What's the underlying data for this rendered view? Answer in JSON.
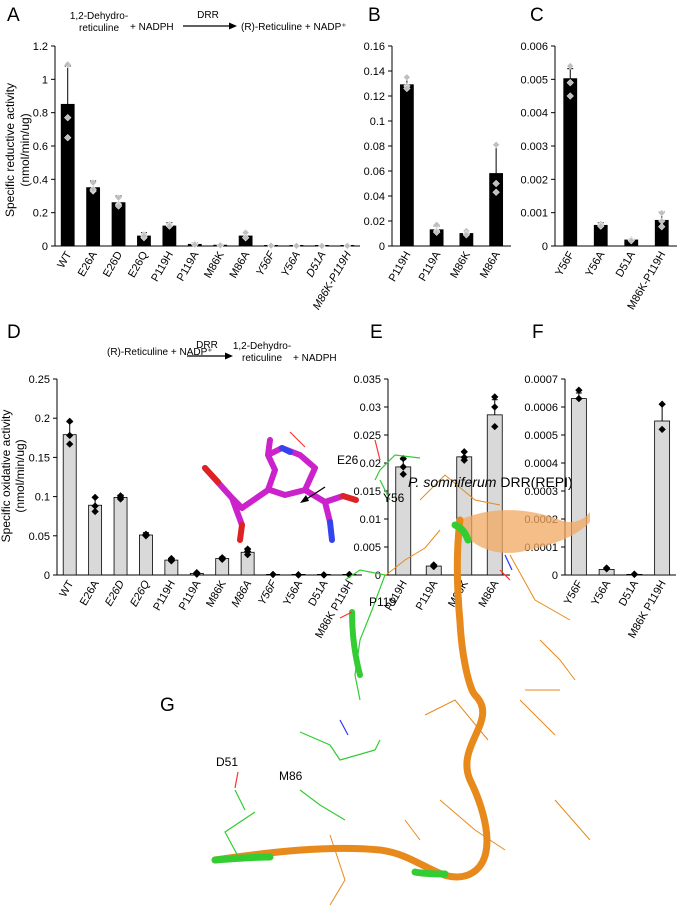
{
  "panels": {
    "A": "A",
    "B": "B",
    "C": "C",
    "D": "D",
    "E": "E",
    "F": "F",
    "G": "G"
  },
  "reactions": {
    "reduction": {
      "substrate": "1,2-Dehydro-",
      "substrate_line2": "reticuline",
      "cofactor": "+ NADPH",
      "enzyme": "DRR",
      "product": "(R)-Reticuline + NADP⁺"
    },
    "oxidation": {
      "substrate": "(R)-Reticuline + NADP⁺",
      "enzyme": "DRR",
      "product": "1,2-Dehydro-",
      "product_line2": "reticuline",
      "cofactor": "+ NADPH"
    }
  },
  "ylabels": {
    "reductive": [
      "Specific reductive  activity",
      "(nmol/min/ug)"
    ],
    "oxidative": [
      "Specific oxidative activity",
      "(nmol/min/ug)"
    ]
  },
  "colors": {
    "reductive_bar": "#000000",
    "oxidative_bar": "#d9d9d9",
    "reductive_point": "#bfbfbf",
    "oxidative_point": "#000000",
    "pink": "#cc22cc",
    "orange": "#e8891c",
    "green": "#33cc33"
  },
  "structure": {
    "title": "P. somniferum DRR(REPI)",
    "residues": [
      "E26",
      "Y56",
      "P119",
      "D51",
      "M86"
    ]
  },
  "chart_data": [
    {
      "panel": "A",
      "type": "bar",
      "categories": [
        "WT",
        "E26A",
        "E26D",
        "E26Q",
        "P119H",
        "P119A",
        "M86K",
        "M86A",
        "Y56F",
        "Y56A",
        "D51A",
        "M86K-P119H"
      ],
      "values": [
        0.85,
        0.35,
        0.26,
        0.06,
        0.12,
        0.01,
        0.005,
        0.06,
        0.003,
        0.002,
        0.0005,
        0.002
      ],
      "errors": [
        0.23,
        0.04,
        0.04,
        0.02,
        0.02,
        0.01,
        0.003,
        0.02,
        0.0005,
        0.0004,
        0.0001,
        0.0004
      ],
      "points": [
        [
          1.09,
          0.77,
          0.65
        ],
        [
          0.38,
          0.33,
          0.34
        ],
        [
          0.29,
          0.25,
          0.24
        ],
        [
          0.07,
          0.05,
          0.06
        ],
        [
          0.13,
          0.12,
          0.12
        ],
        [
          0.015,
          0.01,
          0.008
        ],
        [
          0.006,
          0.005,
          0.004
        ],
        [
          0.08,
          0.05,
          0.05
        ],
        [
          0.003,
          0.003,
          0.002
        ],
        [
          0.002,
          0.002,
          0.001
        ],
        [
          0.0005,
          0.0005,
          0.0005
        ],
        [
          0.002,
          0.002,
          0.001
        ]
      ],
      "ylim": [
        0,
        1.2
      ],
      "yticks": [
        0,
        0.2,
        0.4,
        0.6,
        0.8,
        1,
        1.2
      ],
      "ytick_labels": [
        "0",
        "0.2",
        "0.4",
        "0.6",
        "0.8",
        "1",
        "1.2"
      ],
      "italic_labels": [
        "Y56F",
        "Y56A",
        "D51A",
        "M86K-P119H"
      ]
    },
    {
      "panel": "B",
      "type": "bar",
      "categories": [
        "P119H",
        "P119A",
        "M86K",
        "M86A"
      ],
      "values": [
        0.129,
        0.013,
        0.01,
        0.058
      ],
      "errors": [
        0.006,
        0.003,
        0.002,
        0.023
      ],
      "points": [
        [
          0.135,
          0.128,
          0.126
        ],
        [
          0.017,
          0.012,
          0.011
        ],
        [
          0.012,
          0.01,
          0.009
        ],
        [
          0.081,
          0.05,
          0.043
        ]
      ],
      "ylim": [
        0,
        0.16
      ],
      "yticks": [
        0,
        0.02,
        0.04,
        0.06,
        0.08,
        0.1,
        0.12,
        0.14,
        0.16
      ],
      "ytick_labels": [
        "0",
        "0.02",
        "0.04",
        "0.06",
        "0.08",
        "0.1",
        "0.12",
        "0.14",
        "0.16"
      ]
    },
    {
      "panel": "C",
      "type": "bar",
      "categories": [
        "Y56F",
        "Y56A",
        "D51A",
        "M86K-P119H"
      ],
      "values": [
        0.00502,
        0.00062,
        0.00018,
        0.00077
      ],
      "errors": [
        0.0003,
        8e-05,
        3e-05,
        0.00025
      ],
      "points": [
        [
          0.0054,
          0.0049,
          0.0045
        ],
        [
          0.00066,
          0.0006,
          0.0006
        ],
        [
          0.0002,
          0.00018,
          0.00016
        ],
        [
          0.00099,
          0.00075,
          0.00058
        ]
      ],
      "ylim": [
        0,
        0.006
      ],
      "yticks": [
        0,
        0.001,
        0.002,
        0.003,
        0.004,
        0.005,
        0.006
      ],
      "ytick_labels": [
        "0",
        "0.001",
        "0.002",
        "0.003",
        "0.004",
        "0.005",
        "0.006"
      ]
    },
    {
      "panel": "D",
      "type": "bar",
      "categories": [
        "WT",
        "E26A",
        "E26D",
        "E26Q",
        "P119H",
        "P119A",
        "M86K",
        "M86A",
        "Y56F",
        "Y56A",
        "D51A",
        "M86K P119H"
      ],
      "values": [
        0.179,
        0.089,
        0.099,
        0.051,
        0.019,
        0.002,
        0.021,
        0.029,
        0.0006,
        0.0002,
        0.0001,
        0.0006
      ],
      "errors": [
        0.016,
        0.01,
        0.003,
        0.003,
        0.002,
        0.001,
        0.002,
        0.005,
        0.0001,
        5e-05,
        2e-05,
        0.0001
      ],
      "points": [
        [
          0.196,
          0.178,
          0.167
        ],
        [
          0.099,
          0.088,
          0.081
        ],
        [
          0.101,
          0.099,
          0.097
        ],
        [
          0.052,
          0.051,
          0.05
        ],
        [
          0.021,
          0.02,
          0.018
        ],
        [
          0.003,
          0.002,
          0.001
        ],
        [
          0.022,
          0.021,
          0.02
        ],
        [
          0.033,
          0.03,
          0.026
        ],
        [
          0.0007,
          0.0006,
          0.0006
        ],
        [
          0.0003,
          0.0002,
          0.0002
        ],
        [
          0.0001,
          0.0001,
          0.0001
        ],
        [
          0.0006,
          0.0006,
          0.0005
        ]
      ],
      "ylim": [
        0,
        0.25
      ],
      "yticks": [
        0,
        0.05,
        0.1,
        0.15,
        0.2,
        0.25
      ],
      "ytick_labels": [
        "0",
        "0.05",
        "0.1",
        "0.15",
        "0.2",
        "0.25"
      ],
      "italic_labels": [
        "E26D",
        "E26Q",
        "M86A",
        "Y56F"
      ]
    },
    {
      "panel": "E",
      "type": "bar",
      "categories": [
        "P119H",
        "P119A",
        "M86K",
        "M86A"
      ],
      "values": [
        0.0193,
        0.0016,
        0.0211,
        0.0286
      ],
      "errors": [
        0.0013,
        0.0002,
        0.0009,
        0.0027
      ],
      "points": [
        [
          0.0208,
          0.0193,
          0.018
        ],
        [
          0.0018,
          0.0016,
          0.0015
        ],
        [
          0.022,
          0.021,
          0.0205
        ],
        [
          0.0318,
          0.03,
          0.0265
        ]
      ],
      "ylim": [
        0,
        0.035
      ],
      "yticks": [
        0,
        0.005,
        0.01,
        0.015,
        0.02,
        0.025,
        0.03,
        0.035
      ],
      "ytick_labels": [
        "0",
        "0.005",
        "0.01",
        "0.015",
        "0.02",
        "0.025",
        "0.03",
        "0.035"
      ]
    },
    {
      "panel": "F",
      "type": "bar",
      "categories": [
        "Y56F",
        "Y56A",
        "D51A",
        "M86K P119H"
      ],
      "values": [
        0.00063,
        2e-05,
        2e-06,
        0.00055
      ],
      "errors": [
        2e-05,
        3e-06,
        1e-06,
        6e-05
      ],
      "points": [
        [
          0.00066,
          0.00063
        ],
        [
          2.5e-05,
          2.2e-05
        ],
        [
          3e-06,
          2e-06
        ],
        [
          0.00061,
          0.00052
        ]
      ],
      "ylim": [
        0,
        0.0007
      ],
      "yticks": [
        0,
        0.0001,
        0.0002,
        0.0003,
        0.0004,
        0.0005,
        0.0006,
        0.0007
      ],
      "ytick_labels": [
        "0",
        "0.0001",
        "0.0002",
        "0.0003",
        "0.0004",
        "0.0005",
        "0.0006",
        "0.0007"
      ]
    }
  ]
}
